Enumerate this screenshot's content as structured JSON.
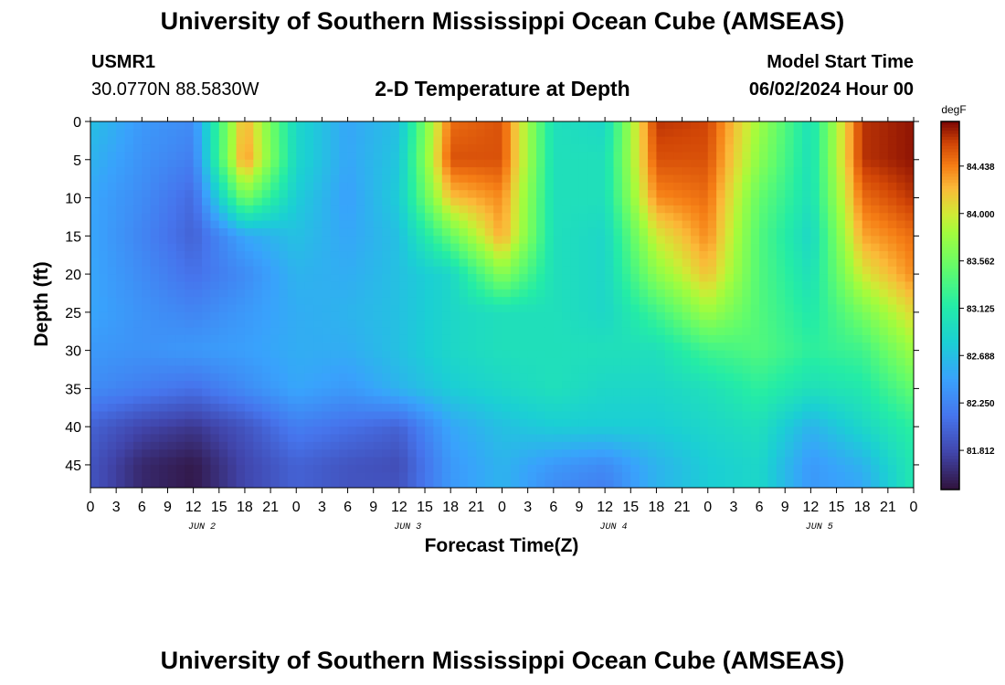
{
  "page": {
    "title": "University of Southern Mississippi Ocean Cube (AMSEAS)",
    "footer_title": "University of Southern Mississippi Ocean Cube (AMSEAS)",
    "station_id": "USMR1",
    "station_coords": "30.0770N  88.5830W",
    "plot_title": "2-D Temperature at Depth",
    "model_start_label": "Model Start Time",
    "model_start_value": "06/02/2024 Hour 00"
  },
  "chart_data": {
    "type": "heatmap",
    "title": "2-D Temperature at Depth",
    "xlabel": "Forecast Time(Z)",
    "ylabel": "Depth (ft)",
    "x_ticks": [
      "0",
      "3",
      "6",
      "9",
      "12",
      "15",
      "18",
      "21",
      "0",
      "3",
      "6",
      "9",
      "12",
      "15",
      "18",
      "21",
      "0",
      "3",
      "6",
      "9",
      "12",
      "15",
      "18",
      "21",
      "0",
      "3",
      "6",
      "9",
      "12",
      "15",
      "18",
      "21",
      "0"
    ],
    "x_hours_range": [
      0,
      96
    ],
    "date_labels": [
      {
        "label": "JUN 2",
        "hour": 13
      },
      {
        "label": "JUN 3",
        "hour": 37
      },
      {
        "label": "JUN 4",
        "hour": 61
      },
      {
        "label": "JUN 5",
        "hour": 85
      }
    ],
    "y_ticks": [
      "0",
      "5",
      "10",
      "15",
      "20",
      "25",
      "30",
      "35",
      "40",
      "45"
    ],
    "y_tick_values": [
      0,
      5,
      10,
      15,
      20,
      25,
      30,
      35,
      40,
      45
    ],
    "ylim": [
      0,
      48
    ],
    "colorbar": {
      "unit": "degF",
      "range": [
        81.45,
        84.85
      ],
      "ticks": [
        "84.438",
        "84.000",
        "83.562",
        "83.125",
        "82.688",
        "82.250",
        "81.812"
      ],
      "tick_values": [
        84.438,
        84.0,
        83.562,
        83.125,
        82.688,
        82.25,
        81.812
      ]
    },
    "depths_ft": [
      0,
      5,
      10,
      15,
      20,
      25,
      30,
      35,
      40,
      45,
      48
    ],
    "hours": [
      0,
      6,
      12,
      18,
      24,
      30,
      36,
      42,
      48,
      54,
      60,
      66,
      72,
      78,
      84,
      90,
      96
    ],
    "values_degF": [
      [
        82.7,
        82.4,
        82.3,
        84.3,
        82.9,
        82.5,
        82.7,
        84.5,
        84.6,
        83.0,
        82.9,
        84.7,
        84.65,
        83.8,
        83.0,
        84.7,
        84.8
      ],
      [
        82.6,
        82.35,
        82.2,
        84.4,
        82.9,
        82.5,
        82.75,
        84.6,
        84.6,
        83.0,
        83.0,
        84.6,
        84.6,
        83.7,
        83.0,
        84.7,
        84.8
      ],
      [
        82.5,
        82.3,
        82.05,
        83.6,
        82.8,
        82.45,
        82.8,
        84.2,
        84.4,
        83.0,
        83.0,
        84.4,
        84.5,
        83.5,
        83.0,
        84.5,
        84.7
      ],
      [
        82.5,
        82.25,
        82.0,
        82.5,
        82.7,
        82.5,
        82.7,
        83.5,
        84.3,
        83.0,
        82.9,
        84.0,
        84.4,
        83.4,
        82.9,
        84.3,
        84.5
      ],
      [
        82.5,
        82.3,
        82.1,
        82.3,
        82.6,
        82.55,
        82.7,
        82.9,
        83.7,
        83.0,
        82.9,
        83.7,
        84.2,
        83.4,
        83.0,
        84.0,
        84.4
      ],
      [
        82.5,
        82.35,
        82.25,
        82.4,
        82.55,
        82.6,
        82.7,
        82.9,
        83.0,
        83.0,
        82.9,
        83.3,
        83.8,
        83.4,
        83.1,
        83.6,
        84.1
      ],
      [
        82.4,
        82.35,
        82.4,
        82.45,
        82.55,
        82.55,
        82.7,
        82.9,
        83.0,
        83.0,
        83.0,
        83.0,
        83.3,
        83.4,
        83.2,
        83.3,
        83.8
      ],
      [
        82.3,
        82.2,
        82.1,
        82.3,
        82.5,
        82.4,
        82.6,
        82.8,
        82.9,
        83.0,
        82.9,
        82.9,
        83.0,
        83.2,
        83.0,
        83.1,
        83.5
      ],
      [
        82.0,
        81.8,
        81.7,
        81.9,
        82.2,
        82.1,
        82.0,
        82.5,
        82.7,
        82.8,
        82.8,
        82.8,
        82.9,
        83.0,
        82.6,
        82.9,
        83.2
      ],
      [
        81.9,
        81.6,
        81.5,
        81.8,
        82.0,
        81.9,
        81.85,
        82.4,
        82.6,
        82.4,
        82.3,
        82.6,
        82.8,
        82.9,
        82.4,
        82.6,
        83.1
      ],
      [
        81.9,
        81.6,
        81.5,
        81.8,
        82.0,
        81.9,
        81.9,
        82.4,
        82.6,
        82.3,
        82.2,
        82.6,
        82.8,
        82.9,
        82.4,
        82.5,
        83.1
      ]
    ]
  }
}
